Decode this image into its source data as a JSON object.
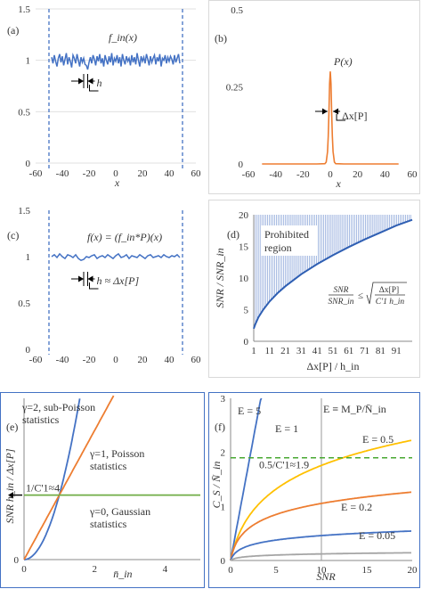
{
  "colors": {
    "blue": "#4472c4",
    "orange": "#ed7d31",
    "gold": "#ffc000",
    "green": "#70ad47",
    "gray": "#a5a5a5",
    "frame": "#d9d9d9",
    "dark_frame": "#4472c4",
    "green_dash": "#48a832"
  },
  "chart_data": [
    {
      "id": "a",
      "type": "line",
      "panel_label": "(a)",
      "series_label": "f_in(x)",
      "xlabel": "x",
      "xlim": [
        -60,
        60
      ],
      "ylim": [
        0,
        1.5
      ],
      "x_ticks": [
        "-60",
        "-40",
        "-20",
        "0",
        "20",
        "40",
        "60"
      ],
      "y_ticks": [
        "0",
        "0.5",
        "1",
        "1.5"
      ],
      "grid": "horizontal",
      "vlines_x": [
        -50,
        50
      ],
      "h_label": "h",
      "series": [
        {
          "name": "f_in(x)",
          "x_start": -48,
          "x_step": 1,
          "values": [
            1.03,
            0.97,
            1.05,
            0.99,
            0.94,
            1.02,
            1.06,
            0.98,
            1.04,
            0.95,
            1.01,
            1.07,
            0.96,
            1.03,
            0.99,
            0.93,
            1.05,
            1.02,
            0.97,
            1.06,
            1.0,
            0.94,
            1.03,
            0.98,
            1.02,
            0.96,
            0.95,
            0.91,
            0.98,
            1.03,
            0.97,
            1.05,
            1.01,
            0.95,
            1.04,
            0.99,
            1.06,
            0.97,
            1.02,
            0.94,
            1.05,
            1.0,
            0.96,
            1.04,
            0.98,
            1.07,
            0.95,
            1.02,
            0.99,
            1.05,
            0.97,
            1.03,
            0.94,
            1.06,
            1.0,
            0.96,
            1.04,
            0.99,
            1.02,
            0.95,
            1.05,
            0.98,
            1.03,
            0.96,
            1.07,
            1.0,
            0.94,
            1.04,
            0.99,
            1.03,
            0.97,
            1.06,
            1.01,
            0.95,
            1.04,
            0.98,
            1.02,
            1.05,
            0.96,
            1.03,
            0.99,
            1.06,
            0.94,
            1.02,
            1.0,
            1.05,
            0.97,
            1.03,
            0.99,
            1.04,
            1.01,
            0.96,
            1.05,
            0.98,
            1.02,
            1.06,
            0.97
          ]
        }
      ]
    },
    {
      "id": "b",
      "type": "line",
      "panel_label": "(b)",
      "series_label": "P(x)",
      "xlabel": "x",
      "xlim": [
        -60,
        60
      ],
      "ylim": [
        0,
        0.5
      ],
      "x_ticks": [
        "-60",
        "-40",
        "-20",
        "0",
        "20",
        "40",
        "60"
      ],
      "y_ticks": [
        "0",
        "0.25",
        "0.5"
      ],
      "width_label": "Δx[P]",
      "series": [
        {
          "name": "P(x)",
          "x": [
            -50,
            -10,
            -4,
            -3,
            -2,
            -1.5,
            -1,
            -0.5,
            0,
            0.5,
            1,
            1.5,
            2,
            3,
            4,
            10,
            50
          ],
          "values": [
            0,
            0,
            0.001,
            0.006,
            0.04,
            0.09,
            0.17,
            0.26,
            0.3,
            0.26,
            0.17,
            0.09,
            0.04,
            0.006,
            0.001,
            0,
            0
          ]
        }
      ]
    },
    {
      "id": "c",
      "type": "line",
      "panel_label": "(c)",
      "series_label": "f(x) = (f_in*P)(x)",
      "xlim": [
        -60,
        60
      ],
      "ylim": [
        0,
        1.5
      ],
      "x_ticks": [
        "-60",
        "-40",
        "-20",
        "0",
        "20",
        "40",
        "60"
      ],
      "y_ticks": [
        "0",
        "0.5",
        "1",
        "1.5"
      ],
      "vlines_x": [
        -50,
        50
      ],
      "h_label": "h ≈ Δx[P]",
      "series": [
        {
          "name": "f(x)",
          "x_start": -48,
          "x_step": 2,
          "values": [
            1.0,
            1.02,
            0.99,
            1.03,
            1.0,
            0.98,
            1.02,
            1.01,
            0.99,
            1.02,
            0.98,
            0.96,
            0.97,
            1.0,
            0.99,
            1.01,
            1.02,
            0.98,
            1.0,
            1.01,
            0.99,
            1.02,
            1.0,
            0.98,
            1.01,
            1.03,
            0.99,
            1.0,
            1.02,
            0.98,
            1.01,
            1.0,
            0.99,
            1.02,
            1.0,
            0.98,
            1.01,
            1.02,
            0.99,
            1.0,
            1.01,
            0.99,
            1.02,
            1.0,
            0.99,
            1.01,
            1.0,
            1.02,
            0.99
          ]
        }
      ]
    },
    {
      "id": "d",
      "type": "line",
      "panel_label": "(d)",
      "xlabel": "Δx[P] / h_in",
      "ylabel": "SNR / SNR_in",
      "xlim": [
        1,
        101
      ],
      "ylim": [
        0,
        20
      ],
      "x_ticks": [
        "1",
        "11",
        "21",
        "31",
        "41",
        "51",
        "61",
        "71",
        "81",
        "91"
      ],
      "x_tick_values": [
        1,
        11,
        21,
        31,
        41,
        51,
        61,
        71,
        81,
        91
      ],
      "y_ticks": [
        "0",
        "5",
        "10",
        "15",
        "20"
      ],
      "region_label": [
        "Prohibited",
        "region"
      ],
      "formula": {
        "lhs_num": "SNR",
        "lhs_den": "SNR_in",
        "rel": "≤",
        "rhs_num": "Δx[P]",
        "rhs_den": "C'1 h_in"
      },
      "series": [
        {
          "name": "bound",
          "x": [
            1,
            2,
            4,
            7,
            11,
            16,
            21,
            31,
            41,
            51,
            61,
            71,
            81,
            91,
            101
          ],
          "values": [
            2.0,
            2.7,
            3.8,
            5.0,
            6.3,
            7.6,
            8.7,
            10.6,
            12.2,
            13.6,
            14.9,
            16.1,
            17.2,
            18.3,
            19.2
          ]
        }
      ]
    },
    {
      "id": "e",
      "type": "line",
      "panel_label": "(e)",
      "xlabel": "n̄_in",
      "ylabel": "SNR h_in / Δx[P]",
      "xlim": [
        0,
        5
      ],
      "ylim": [
        0,
        10
      ],
      "x_ticks": [
        "0",
        "2",
        "4"
      ],
      "x_tick_values": [
        0,
        2,
        4
      ],
      "y_ticks": [
        "0"
      ],
      "threshold_label": "1/C'1≈4",
      "series": [
        {
          "name": "γ=2, sub-Poisson statistics",
          "color": "blue",
          "power": 2,
          "coef": 4.0
        },
        {
          "name": "γ=1, Poisson statistics",
          "color": "orange",
          "power": 1,
          "coef": 4.0
        },
        {
          "name": "γ=0, Gaussian statistics",
          "color": "green",
          "power": 0,
          "coef": 4.0
        }
      ],
      "annotations": [
        {
          "lines": [
            "γ=2, sub-Poisson",
            "statistics"
          ]
        },
        {
          "lines": [
            "γ=1, Poisson",
            "statistics"
          ]
        },
        {
          "lines": [
            "γ=0, Gaussian",
            "statistics"
          ]
        }
      ]
    },
    {
      "id": "f",
      "type": "line",
      "panel_label": "(f)",
      "xlabel": "SNR",
      "ylabel": "C_S / N̄_in",
      "xlim": [
        0,
        20
      ],
      "ylim": [
        0,
        3
      ],
      "x_ticks": [
        "0",
        "5",
        "10",
        "15",
        "20"
      ],
      "x_tick_values": [
        0,
        5,
        10,
        15,
        20
      ],
      "y_ticks": [
        "0",
        "1",
        "2",
        "3"
      ],
      "y_tick_values": [
        0,
        1,
        2,
        3
      ],
      "definition": "E ≡ M_P/N̄_in",
      "threshold_label": "0.5/C'1≈1.9",
      "threshold_value": 1.9,
      "series": [
        {
          "name": "E = 5",
          "color": "blue",
          "E": 5
        },
        {
          "name": "E = 1",
          "color": "gold",
          "E": 1
        },
        {
          "name": "E = 0.5",
          "color": "orange",
          "E": 0.5
        },
        {
          "name": "E = 0.2",
          "color": "blue",
          "E": 0.2
        },
        {
          "name": "E = 0.05",
          "color": "gray",
          "E": 0.05
        }
      ]
    }
  ]
}
